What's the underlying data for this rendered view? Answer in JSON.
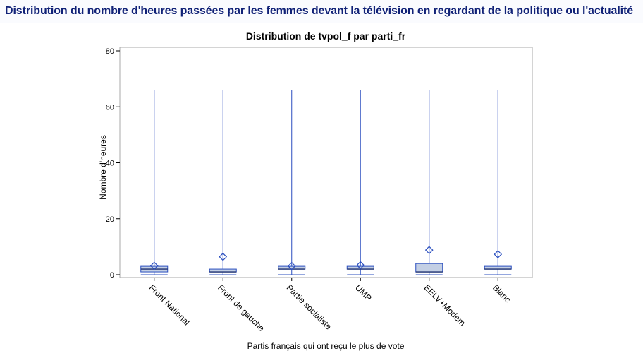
{
  "page": {
    "title": "Distribution du nombre d'heures passées par les femmes devant la télévision en regardant de la politique ou l'actualité"
  },
  "chart_data": {
    "type": "box",
    "title": "Distribution de tvpol_f par parti_fr",
    "xlabel": "Partis français qui ont reçu le plus de vote",
    "ylabel": "Nombre d'heures",
    "ylim": [
      0,
      80
    ],
    "yticks": [
      0,
      20,
      40,
      60,
      80
    ],
    "categories": [
      "Front National",
      "Front de gauche",
      "Partie socialiste",
      "UMP",
      "EELV+Modem",
      "Blanc"
    ],
    "series": [
      {
        "min": [
          0,
          0,
          0,
          0,
          0,
          0
        ],
        "q1": [
          1,
          1,
          2,
          2,
          1,
          2
        ],
        "median": [
          2,
          1,
          2,
          2,
          1,
          2
        ],
        "q3": [
          3,
          2,
          3,
          3,
          4,
          3
        ],
        "max": [
          66,
          66,
          66,
          66,
          66,
          66
        ],
        "mean": [
          3.2,
          6.4,
          3.1,
          3.4,
          8.8,
          7.3
        ]
      }
    ],
    "colors": {
      "stroke": "#2b4fbf",
      "fill": "#c3cfe4",
      "median": "#1c2e6e"
    },
    "grid": false,
    "legend": "none"
  }
}
